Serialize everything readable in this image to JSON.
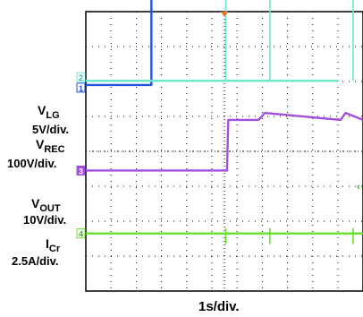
{
  "chart_data": {
    "type": "line",
    "title": "",
    "xlabel": "1s/div.",
    "ylabel": "",
    "grid": true,
    "x_divisions": 10,
    "y_divisions": 8,
    "channels": [
      {
        "id": "1",
        "name_main": "V",
        "name_sub": "LG",
        "scale": "5V/div.",
        "color": "#1f52e0"
      },
      {
        "id": "2",
        "name_main": "V",
        "name_sub": "REC",
        "scale": "100V/div.",
        "color": "#66e8cf"
      },
      {
        "id": "3",
        "name_main": "V",
        "name_sub": "OUT",
        "scale": "10V/div.",
        "color": "#a14fe0"
      },
      {
        "id": "4",
        "name_main": "I",
        "name_sub": "Cr",
        "scale": "2.5A/div.",
        "color": "#66e02a"
      }
    ],
    "series": [
      {
        "channel": "1",
        "points": [
          [
            0,
            1.9
          ],
          [
            2.6,
            1.9
          ],
          [
            2.6,
            7.02
          ],
          [
            10,
            7.02
          ]
        ]
      },
      {
        "channel": "2",
        "points": [
          [
            0,
            2.02
          ],
          [
            10,
            2.02
          ]
        ],
        "spikes": [
          [
            5.55,
            4.75
          ],
          [
            7.3,
            4.4
          ],
          [
            10.6,
            4.75
          ]
        ]
      },
      {
        "channel": "3",
        "points": [
          [
            0,
            -0.55
          ],
          [
            5.6,
            -0.55
          ],
          [
            5.65,
            0.9
          ],
          [
            6.85,
            0.9
          ],
          [
            7.1,
            1.1
          ],
          [
            10.1,
            0.9
          ],
          [
            10.3,
            1.1
          ],
          [
            11.3,
            0.9
          ]
        ]
      },
      {
        "channel": "4",
        "points": [
          [
            0,
            -2.35
          ],
          [
            11.3,
            -2.35
          ]
        ],
        "spikes": [
          [
            5.55,
            -2.2
          ],
          [
            7.3,
            -2.2
          ],
          [
            10.6,
            -2.2
          ]
        ]
      }
    ]
  },
  "markers": {
    "trigger_color": "#f07020",
    "right_marker_color": "#22aa22"
  }
}
